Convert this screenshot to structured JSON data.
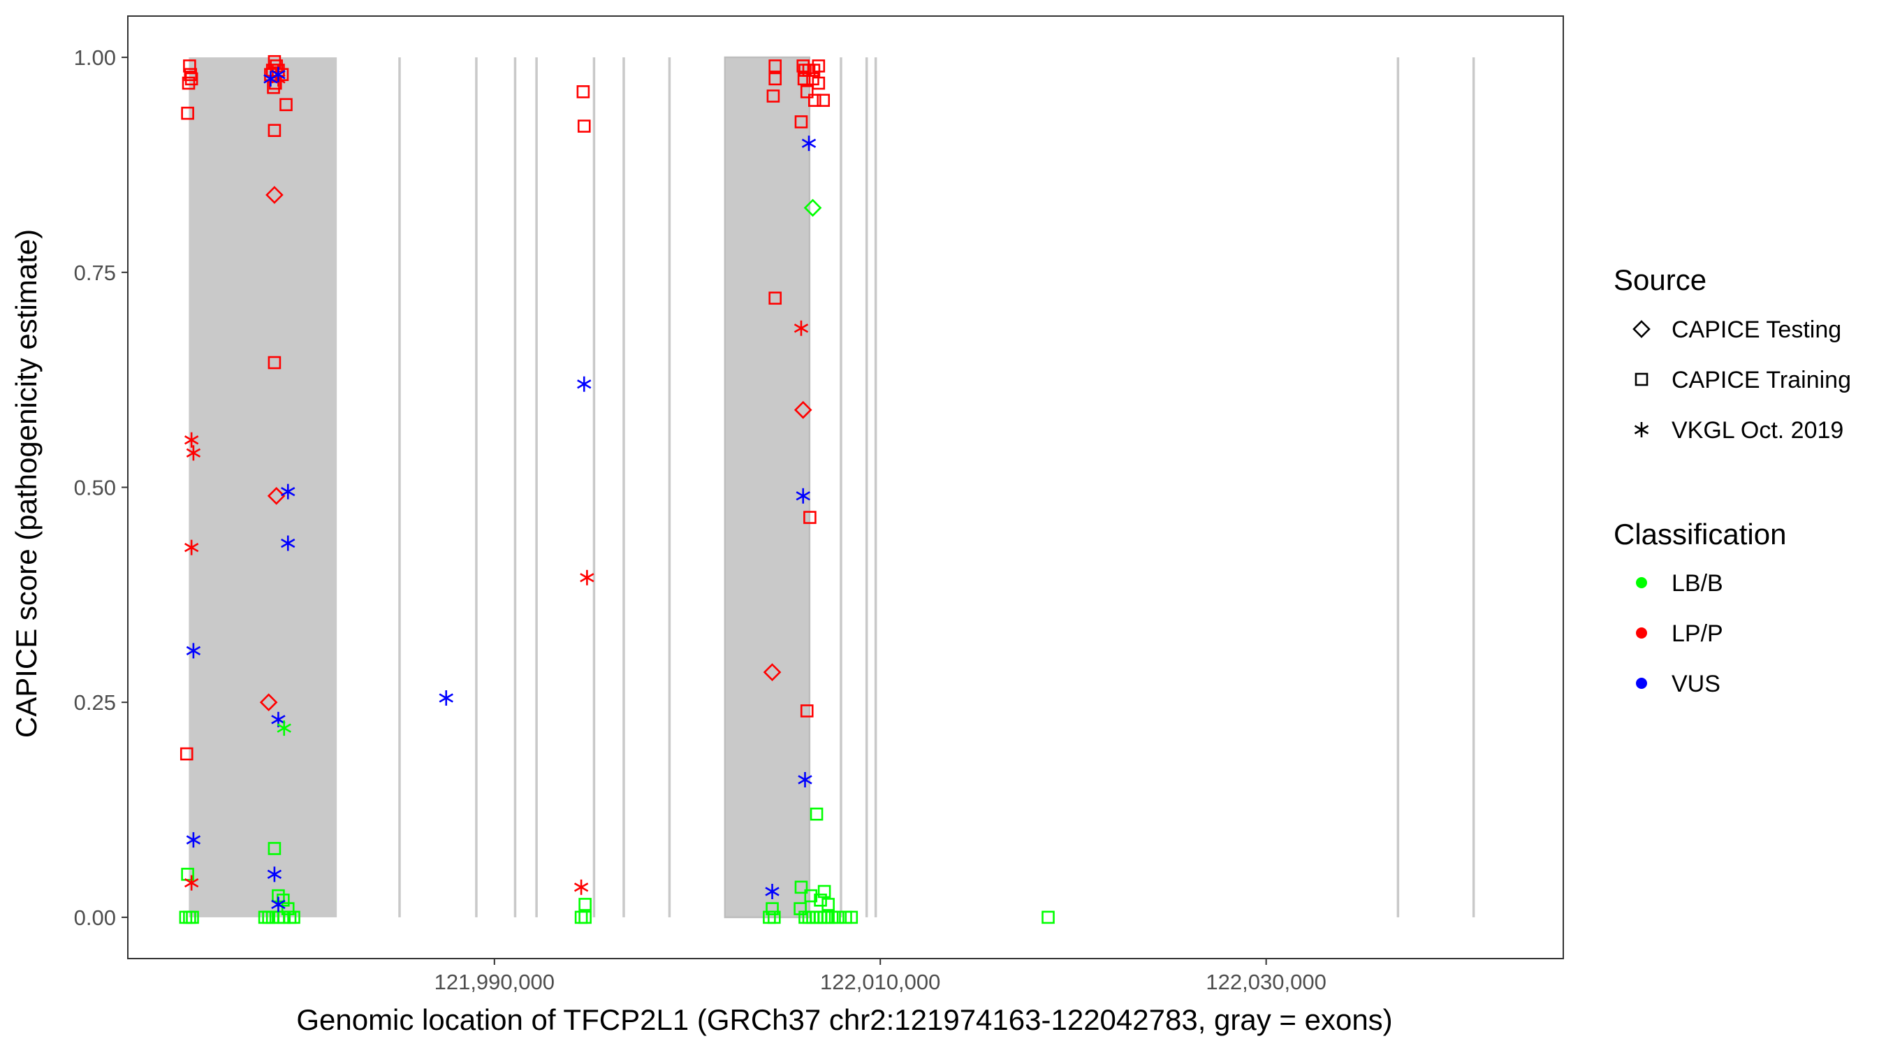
{
  "chart_data": {
    "type": "scatter",
    "xlabel": "Genomic location of TFCP2L1 (GRCh37 chr2:121974163-122042783, gray = exons)",
    "ylabel": "CAPICE score (pathogenicity estimate)",
    "xlim": [
      121971000,
      122045400
    ],
    "ylim": [
      -0.048,
      1.048
    ],
    "x_ticks": [
      121990000,
      122010000,
      122030000
    ],
    "x_tick_labels": [
      "121,990,000",
      "122,010,000",
      "122,030,000"
    ],
    "y_ticks": [
      0,
      0.25,
      0.5,
      0.75,
      1.0
    ],
    "y_tick_labels": [
      "0.00",
      "0.25",
      "0.50",
      "0.75",
      "1.00"
    ],
    "grid": false,
    "legend_position": "right",
    "exons": [
      [
        121974163,
        121981830
      ],
      [
        121985020,
        121985090
      ],
      [
        121989000,
        121989050
      ],
      [
        121991010,
        121991080
      ],
      [
        121992120,
        121992190
      ],
      [
        121995100,
        121995170
      ],
      [
        121996640,
        121996700
      ],
      [
        121999010,
        121999080
      ],
      [
        122001950,
        122006330
      ],
      [
        122007900,
        122007980
      ],
      [
        122009230,
        122009300
      ],
      [
        122009700,
        122009770
      ],
      [
        122036770,
        122036840
      ],
      [
        122040690,
        122040760
      ]
    ],
    "legend": {
      "source_title": "Source",
      "source_items": [
        {
          "label": "CAPICE Testing",
          "shape": "diamond"
        },
        {
          "label": "CAPICE Training",
          "shape": "square"
        },
        {
          "label": "VKGL Oct. 2019",
          "shape": "asterisk"
        }
      ],
      "class_title": "Classification",
      "class_items": [
        {
          "label": "LB/B",
          "color": "#00ff00"
        },
        {
          "label": "LP/P",
          "color": "#ff0000"
        },
        {
          "label": "VUS",
          "color": "#0000ff"
        }
      ]
    },
    "series": [
      {
        "source": "CAPICE Training",
        "class": "LP/P",
        "points": [
          [
            121974200,
            0.99
          ],
          [
            121974250,
            0.98
          ],
          [
            121974150,
            0.97
          ],
          [
            121974300,
            0.975
          ],
          [
            121974100,
            0.935
          ],
          [
            121974050,
            0.19
          ],
          [
            121978600,
            0.995
          ],
          [
            121978700,
            0.99
          ],
          [
            121978500,
            0.985
          ],
          [
            121978800,
            0.985
          ],
          [
            121978400,
            0.98
          ],
          [
            121979000,
            0.98
          ],
          [
            121978650,
            0.97
          ],
          [
            121978550,
            0.965
          ],
          [
            121979200,
            0.945
          ],
          [
            121978600,
            0.915
          ],
          [
            121978600,
            0.645
          ],
          [
            121994600,
            0.96
          ],
          [
            121994650,
            0.92
          ],
          [
            122004550,
            0.99
          ],
          [
            122004550,
            0.975
          ],
          [
            122004450,
            0.955
          ],
          [
            122004550,
            0.72
          ],
          [
            122006000,
            0.99
          ],
          [
            122006100,
            0.985
          ],
          [
            122006300,
            0.985
          ],
          [
            122006550,
            0.985
          ],
          [
            122006800,
            0.99
          ],
          [
            122006050,
            0.975
          ],
          [
            122006500,
            0.975
          ],
          [
            122006800,
            0.97
          ],
          [
            122006200,
            0.96
          ],
          [
            122006600,
            0.95
          ],
          [
            122007050,
            0.95
          ],
          [
            122005900,
            0.925
          ],
          [
            122006350,
            0.465
          ],
          [
            122006200,
            0.24
          ]
        ]
      },
      {
        "source": "CAPICE Training",
        "class": "LB/B",
        "points": [
          [
            121974100,
            0.05
          ],
          [
            121974200,
            0.0
          ],
          [
            121974350,
            0.0
          ],
          [
            121974000,
            0.0
          ],
          [
            121978600,
            0.08
          ],
          [
            121978800,
            0.025
          ],
          [
            121979050,
            0.02
          ],
          [
            121978100,
            0.0
          ],
          [
            121978300,
            0.0
          ],
          [
            121978500,
            0.0
          ],
          [
            121978800,
            0.0
          ],
          [
            121979100,
            0.0
          ],
          [
            121979400,
            0.0
          ],
          [
            121979600,
            0.0
          ],
          [
            121979300,
            0.01
          ],
          [
            121994700,
            0.015
          ],
          [
            121994500,
            0.0
          ],
          [
            121994700,
            0.0
          ],
          [
            122004400,
            0.01
          ],
          [
            122004250,
            0.0
          ],
          [
            122004500,
            0.0
          ],
          [
            122006700,
            0.12
          ],
          [
            122005900,
            0.035
          ],
          [
            122007100,
            0.03
          ],
          [
            122006400,
            0.025
          ],
          [
            122006900,
            0.02
          ],
          [
            122007300,
            0.015
          ],
          [
            122006100,
            0.0
          ],
          [
            122006300,
            0.0
          ],
          [
            122006500,
            0.0
          ],
          [
            122006700,
            0.0
          ],
          [
            122006900,
            0.0
          ],
          [
            122007100,
            0.0
          ],
          [
            122007300,
            0.0
          ],
          [
            122007500,
            0.0
          ],
          [
            122007800,
            0.0
          ],
          [
            122008200,
            0.0
          ],
          [
            122008500,
            0.0
          ],
          [
            122005850,
            0.01
          ],
          [
            122018700,
            0.0
          ]
        ]
      },
      {
        "source": "CAPICE Testing",
        "class": "LP/P",
        "points": [
          [
            121978600,
            0.84
          ],
          [
            121978700,
            0.49
          ],
          [
            121978300,
            0.25
          ],
          [
            122004400,
            0.285
          ],
          [
            122006000,
            0.59
          ]
        ]
      },
      {
        "source": "CAPICE Testing",
        "class": "LB/B",
        "points": [
          [
            122006500,
            0.825
          ]
        ]
      },
      {
        "source": "VKGL Oct. 2019",
        "class": "LP/P",
        "points": [
          [
            121974300,
            0.555
          ],
          [
            121974400,
            0.54
          ],
          [
            121974300,
            0.43
          ],
          [
            121974300,
            0.04
          ],
          [
            121978800,
            0.975
          ],
          [
            121994800,
            0.395
          ],
          [
            121994500,
            0.035
          ],
          [
            122005900,
            0.685
          ]
        ]
      },
      {
        "source": "VKGL Oct. 2019",
        "class": "VUS",
        "points": [
          [
            121974400,
            0.31
          ],
          [
            121974400,
            0.09
          ],
          [
            121978800,
            0.98
          ],
          [
            121978400,
            0.975
          ],
          [
            121979300,
            0.495
          ],
          [
            121979300,
            0.435
          ],
          [
            121978800,
            0.23
          ],
          [
            121978600,
            0.05
          ],
          [
            121978800,
            0.015
          ],
          [
            121987500,
            0.255
          ],
          [
            121994650,
            0.62
          ],
          [
            122006300,
            0.9
          ],
          [
            122006000,
            0.49
          ],
          [
            122006100,
            0.16
          ],
          [
            122004400,
            0.03
          ]
        ]
      },
      {
        "source": "VKGL Oct. 2019",
        "class": "LB/B",
        "points": [
          [
            121979100,
            0.22
          ]
        ]
      }
    ]
  }
}
